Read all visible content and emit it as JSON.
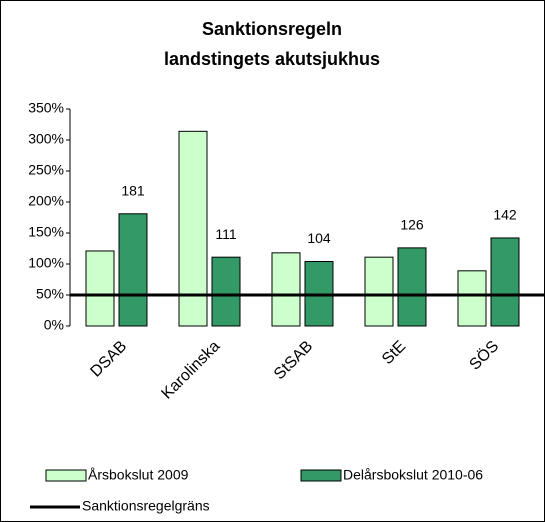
{
  "chart_data": {
    "type": "bar",
    "title": [
      "Sanktionsregeln",
      "landstingets akutsjukhus"
    ],
    "categories": [
      "DSAB",
      "Karolinska",
      "StSAB",
      "StE",
      "SÖS"
    ],
    "series": [
      {
        "name": "Årsbokslut 2009",
        "color": "#ccffcc",
        "values": [
          121,
          314,
          118,
          111,
          89
        ]
      },
      {
        "name": "Delårsbokslut 2010-06",
        "color": "#339966",
        "values": [
          181,
          111,
          104,
          126,
          142
        ],
        "value_labels": [
          "181",
          "111",
          "104",
          "126",
          "142"
        ]
      }
    ],
    "threshold": {
      "name": "Sanktionsregelgräns",
      "value": 50,
      "color": "#000000"
    },
    "ylim": [
      0,
      350
    ],
    "yticks": [
      {
        "value": 0,
        "label": "0%"
      },
      {
        "value": 50,
        "label": "50%"
      },
      {
        "value": 100,
        "label": "100%"
      },
      {
        "value": 150,
        "label": "150%"
      },
      {
        "value": 200,
        "label": "200%"
      },
      {
        "value": 250,
        "label": "250%"
      },
      {
        "value": 300,
        "label": "300%"
      },
      {
        "value": 350,
        "label": "350%"
      }
    ]
  }
}
